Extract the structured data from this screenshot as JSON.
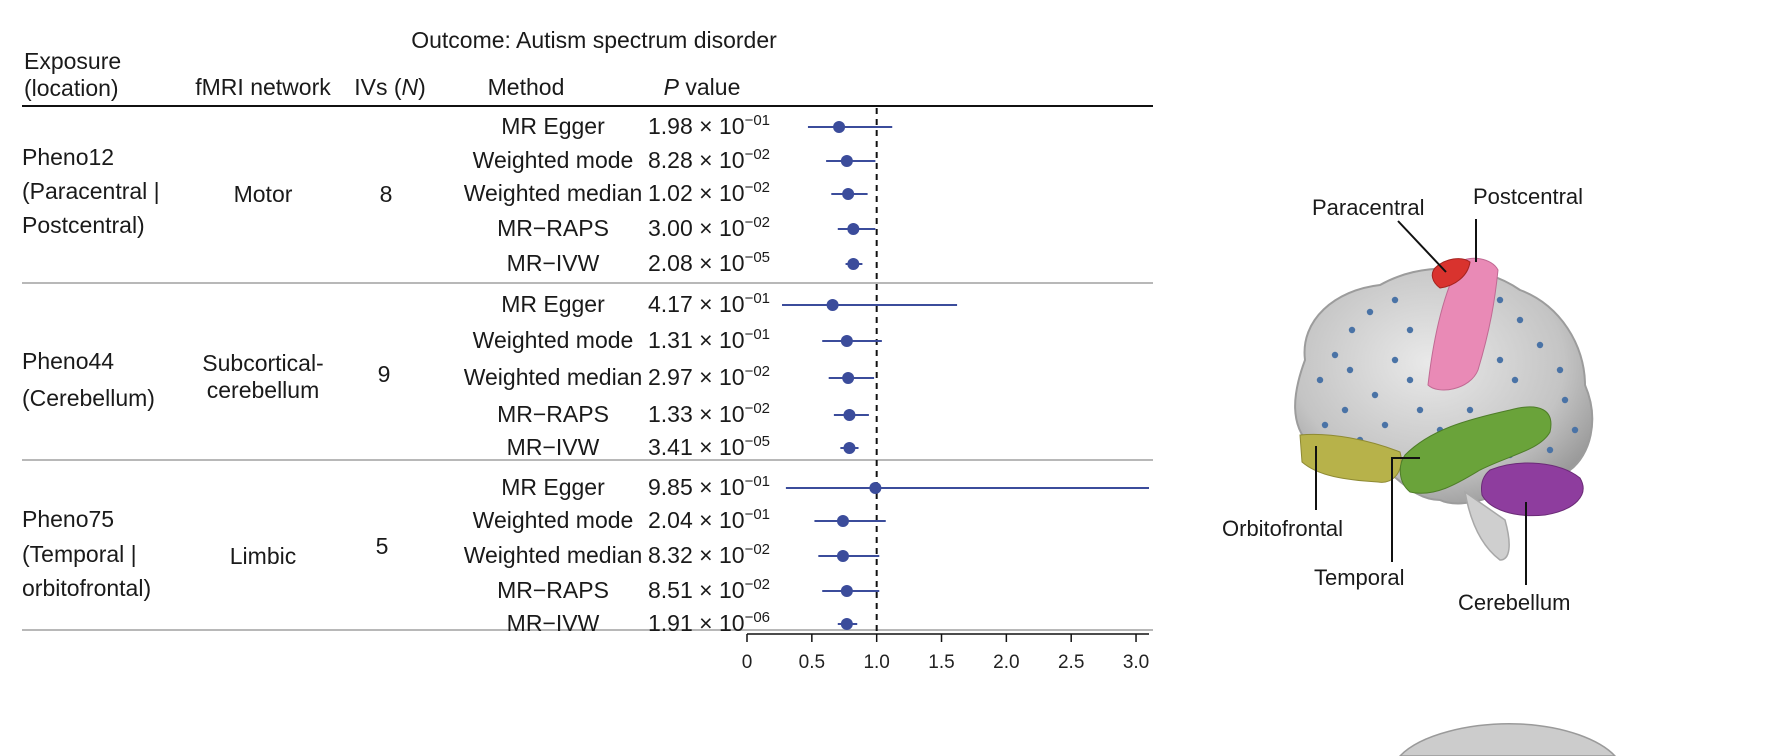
{
  "outcome_title": "Outcome: Autism spectrum disorder",
  "columns": {
    "exposure": [
      "Exposure",
      "(location)"
    ],
    "network": "fMRI network",
    "ivs": "IVs (",
    "ivs_n": "N",
    "ivs_close": ")",
    "method": "Method",
    "pvalue_p": "P",
    "pvalue_rest": " value"
  },
  "groups": [
    {
      "exposure": [
        "Pheno12",
        "(Paracentral |",
        "Postcentral)"
      ],
      "network": [
        "Motor"
      ],
      "ivs": "8",
      "rows": [
        {
          "method": "MR Egger",
          "p_mant": "1.98 × 10",
          "p_exp": "−01"
        },
        {
          "method": "Weighted mode",
          "p_mant": "8.28 × 10",
          "p_exp": "−02"
        },
        {
          "method": "Weighted median",
          "p_mant": "1.02 × 10",
          "p_exp": "−02"
        },
        {
          "method": "MR−RAPS",
          "p_mant": "3.00 × 10",
          "p_exp": "−02"
        },
        {
          "method": "MR−IVW",
          "p_mant": "2.08 × 10",
          "p_exp": "−05"
        }
      ]
    },
    {
      "exposure": [
        "Pheno44",
        "(Cerebellum)"
      ],
      "network": [
        "Subcortical-",
        "cerebellum"
      ],
      "ivs": "9",
      "rows": [
        {
          "method": "MR Egger",
          "p_mant": "4.17 × 10",
          "p_exp": "−01"
        },
        {
          "method": "Weighted mode",
          "p_mant": "1.31 × 10",
          "p_exp": "−01"
        },
        {
          "method": "Weighted median",
          "p_mant": "2.97 × 10",
          "p_exp": "−02"
        },
        {
          "method": "MR−RAPS",
          "p_mant": "1.33 × 10",
          "p_exp": "−02"
        },
        {
          "method": "MR−IVW",
          "p_mant": "3.41 × 10",
          "p_exp": "−05"
        }
      ]
    },
    {
      "exposure": [
        "Pheno75",
        "(Temporal |",
        "orbitofrontal)"
      ],
      "network": [
        "Limbic"
      ],
      "ivs": "5",
      "rows": [
        {
          "method": "MR Egger",
          "p_mant": "9.85 × 10",
          "p_exp": "−01"
        },
        {
          "method": "Weighted mode",
          "p_mant": "2.04 × 10",
          "p_exp": "−01"
        },
        {
          "method": "Weighted median",
          "p_mant": "8.32 × 10",
          "p_exp": "−02"
        },
        {
          "method": "MR−RAPS",
          "p_mant": "8.51 × 10",
          "p_exp": "−02"
        },
        {
          "method": "MR−IVW",
          "p_mant": "1.91 × 10",
          "p_exp": "−06"
        }
      ]
    }
  ],
  "chart_data": {
    "type": "forest",
    "xlim": [
      0,
      3.1
    ],
    "xticks": [
      "0",
      "0.5",
      "1.0",
      "1.5",
      "2.0",
      "2.5",
      "3.0"
    ],
    "xtick_values": [
      0,
      0.5,
      1.0,
      1.5,
      2.0,
      2.5,
      3.0
    ],
    "reference_line": 1.0,
    "point_color": "#3b4c9b",
    "series": [
      {
        "point": 0.71,
        "low": 0.47,
        "high": 1.12
      },
      {
        "point": 0.77,
        "low": 0.61,
        "high": 0.99
      },
      {
        "point": 0.78,
        "low": 0.65,
        "high": 0.93
      },
      {
        "point": 0.82,
        "low": 0.7,
        "high": 0.99
      },
      {
        "point": 0.82,
        "low": 0.76,
        "high": 0.89
      },
      {
        "point": 0.66,
        "low": 0.27,
        "high": 1.62
      },
      {
        "point": 0.77,
        "low": 0.58,
        "high": 1.04
      },
      {
        "point": 0.78,
        "low": 0.63,
        "high": 0.98
      },
      {
        "point": 0.79,
        "low": 0.67,
        "high": 0.94
      },
      {
        "point": 0.79,
        "low": 0.72,
        "high": 0.86
      },
      {
        "point": 0.99,
        "low": 0.3,
        "high": 3.15
      },
      {
        "point": 0.74,
        "low": 0.52,
        "high": 1.07
      },
      {
        "point": 0.74,
        "low": 0.55,
        "high": 1.02
      },
      {
        "point": 0.77,
        "low": 0.58,
        "high": 1.02
      },
      {
        "point": 0.77,
        "low": 0.7,
        "high": 0.85
      }
    ]
  },
  "brain_labels": {
    "paracentral": "Paracentral",
    "postcentral": "Postcentral",
    "orbitofrontal": "Orbitofrontal",
    "temporal": "Temporal",
    "cerebellum": "Cerebellum"
  },
  "colors": {
    "paracentral": "#d9332e",
    "postcentral": "#e98ab6",
    "temporal": "#6aa33a",
    "orbitofrontal": "#b7b24a",
    "cerebellum": "#8e3d9e"
  }
}
